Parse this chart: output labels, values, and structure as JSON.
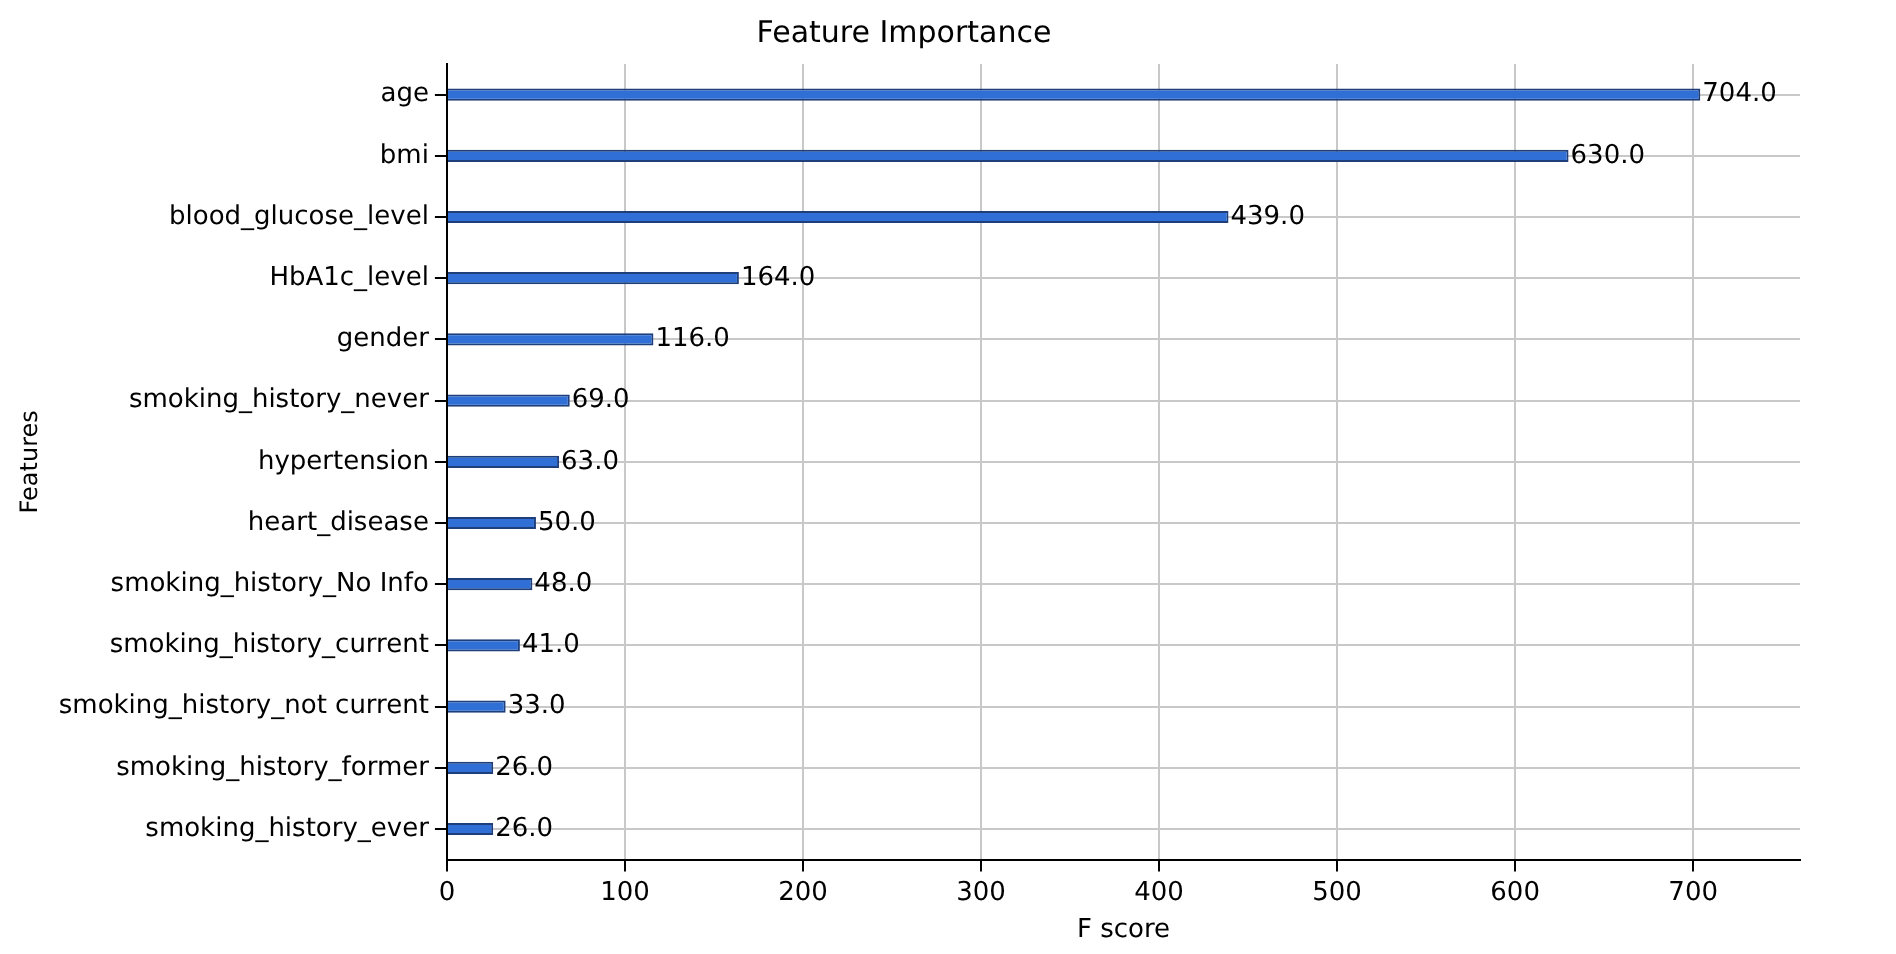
{
  "chart_data": {
    "type": "bar",
    "orientation": "horizontal",
    "title": "Feature Importance",
    "xlabel": "F score",
    "ylabel": "Features",
    "categories": [
      "age",
      "bmi",
      "blood_glucose_level",
      "HbA1c_level",
      "gender",
      "smoking_history_never",
      "hypertension",
      "heart_disease",
      "smoking_history_No Info",
      "smoking_history_current",
      "smoking_history_not current",
      "smoking_history_former",
      "smoking_history_ever"
    ],
    "values": [
      704,
      630,
      439,
      164,
      116,
      69,
      63,
      50,
      48,
      41,
      33,
      26,
      26
    ],
    "value_labels": [
      "704.0",
      "630.0",
      "439.0",
      "164.0",
      "116.0",
      "69.0",
      "63.0",
      "50.0",
      "48.0",
      "41.0",
      "33.0",
      "26.0",
      "26.0"
    ],
    "color": "#2f6fd6",
    "xlim": [
      0,
      760
    ],
    "xticks": [
      0,
      100,
      200,
      300,
      400,
      500,
      600,
      700
    ],
    "grid": true
  }
}
